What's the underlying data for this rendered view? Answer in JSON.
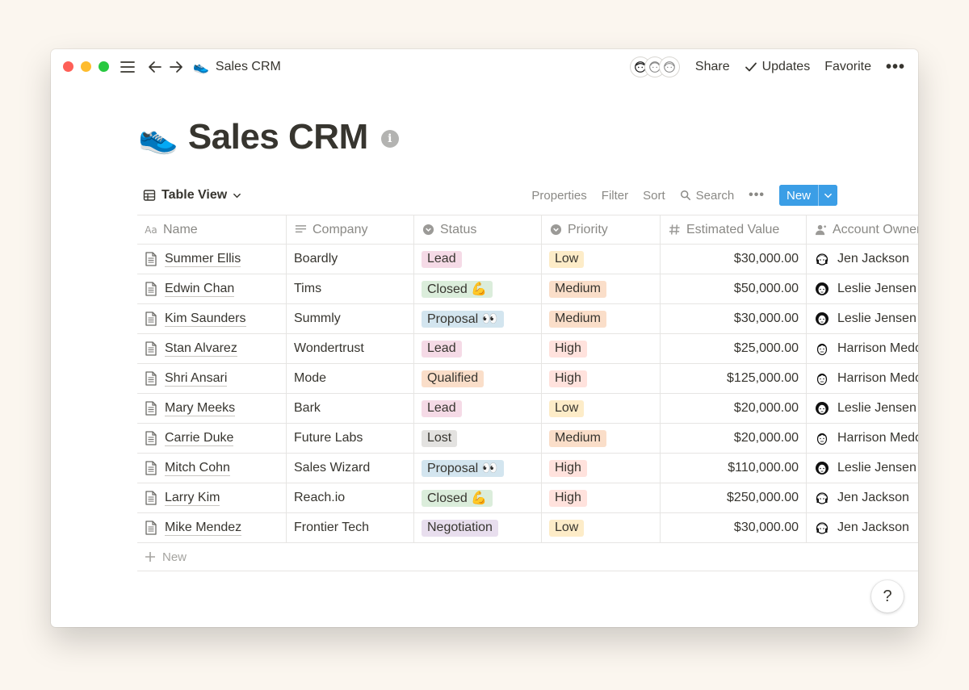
{
  "topbar": {
    "breadcrumb_icon": "👟",
    "breadcrumb_title": "Sales CRM",
    "share_label": "Share",
    "updates_label": "Updates",
    "favorite_label": "Favorite",
    "more_label": "•••"
  },
  "page": {
    "icon": "👟",
    "title": "Sales CRM"
  },
  "viewbar": {
    "view_label": "Table View",
    "properties_label": "Properties",
    "filter_label": "Filter",
    "sort_label": "Sort",
    "search_label": "Search",
    "more_label": "•••",
    "new_label": "New"
  },
  "table": {
    "columns": [
      "Name",
      "Company",
      "Status",
      "Priority",
      "Estimated Value",
      "Account Owner"
    ],
    "rows": [
      {
        "name": "Summer Ellis",
        "company": "Boardly",
        "status": "Lead",
        "priority": "Low",
        "value": "$30,000.00",
        "owner": "Jen Jackson"
      },
      {
        "name": "Edwin Chan",
        "company": "Tims",
        "status": "Closed 💪",
        "priority": "Medium",
        "value": "$50,000.00",
        "owner": "Leslie Jensen"
      },
      {
        "name": "Kim Saunders",
        "company": "Summly",
        "status": "Proposal 👀",
        "priority": "Medium",
        "value": "$30,000.00",
        "owner": "Leslie Jensen"
      },
      {
        "name": "Stan Alvarez",
        "company": "Wondertrust",
        "status": "Lead",
        "priority": "High",
        "value": "$25,000.00",
        "owner": "Harrison Medoff"
      },
      {
        "name": "Shri Ansari",
        "company": "Mode",
        "status": "Qualified",
        "priority": "High",
        "value": "$125,000.00",
        "owner": "Harrison Medoff"
      },
      {
        "name": "Mary Meeks",
        "company": "Bark",
        "status": "Lead",
        "priority": "Low",
        "value": "$20,000.00",
        "owner": "Leslie Jensen"
      },
      {
        "name": "Carrie Duke",
        "company": "Future Labs",
        "status": "Lost",
        "priority": "Medium",
        "value": "$20,000.00",
        "owner": "Harrison Medoff"
      },
      {
        "name": "Mitch Cohn",
        "company": "Sales Wizard",
        "status": "Proposal 👀",
        "priority": "High",
        "value": "$110,000.00",
        "owner": "Leslie Jensen"
      },
      {
        "name": "Larry Kim",
        "company": "Reach.io",
        "status": "Closed 💪",
        "priority": "High",
        "value": "$250,000.00",
        "owner": "Jen Jackson"
      },
      {
        "name": "Mike Mendez",
        "company": "Frontier Tech",
        "status": "Negotiation",
        "priority": "Low",
        "value": "$30,000.00",
        "owner": "Jen Jackson"
      }
    ],
    "new_row_label": "New"
  },
  "help_label": "?",
  "colors": {
    "status": {
      "Lead": "#f5dae6",
      "Closed": "#dbeddb",
      "Proposal": "#d3e5ef",
      "Qualified": "#fadec9",
      "Lost": "#e3e2e0",
      "Negotiation": "#e8deee"
    },
    "priority": {
      "Low": "#fdecc8",
      "Medium": "#fadec9",
      "High": "#ffe2dd"
    },
    "new_button": "#3b9ee6"
  }
}
